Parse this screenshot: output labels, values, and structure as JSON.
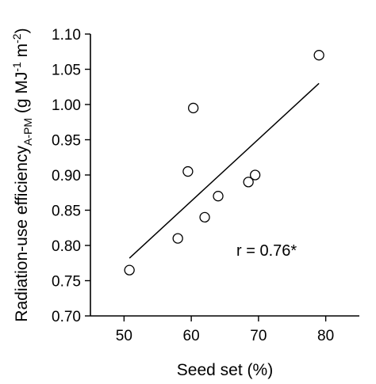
{
  "chart_data": {
    "type": "scatter",
    "xlabel": "Seed set (%)",
    "ylabel": {
      "main": "Radiation-use efficiency",
      "subscript": "A-PM",
      "unit_prefix": " (g MJ",
      "unit_exp1": "-1",
      "unit_mid": " m",
      "unit_exp2": "-2",
      "unit_suffix": ")"
    },
    "xlim": [
      45,
      85
    ],
    "ylim": [
      0.7,
      1.1
    ],
    "x_ticks": [
      50,
      60,
      70,
      80
    ],
    "x_tick_labels": [
      "50",
      "60",
      "70",
      "80"
    ],
    "y_ticks": [
      0.7,
      0.75,
      0.8,
      0.85,
      0.9,
      0.95,
      1.0,
      1.05,
      1.1
    ],
    "y_tick_labels": [
      "0.70",
      "0.75",
      "0.80",
      "0.85",
      "0.90",
      "0.95",
      "1.00",
      "1.05",
      "1.10"
    ],
    "points": [
      {
        "x": 50.8,
        "y": 0.765
      },
      {
        "x": 58.0,
        "y": 0.81
      },
      {
        "x": 59.5,
        "y": 0.905
      },
      {
        "x": 60.3,
        "y": 0.995
      },
      {
        "x": 62.0,
        "y": 0.84
      },
      {
        "x": 64.0,
        "y": 0.87
      },
      {
        "x": 68.5,
        "y": 0.89
      },
      {
        "x": 69.5,
        "y": 0.9
      },
      {
        "x": 79.0,
        "y": 1.07
      }
    ],
    "regression_line": {
      "x": [
        50.8,
        79.0
      ],
      "y": [
        0.782,
        1.03
      ]
    },
    "annotation": "r = 0.76*",
    "grid": false,
    "legend": false
  }
}
